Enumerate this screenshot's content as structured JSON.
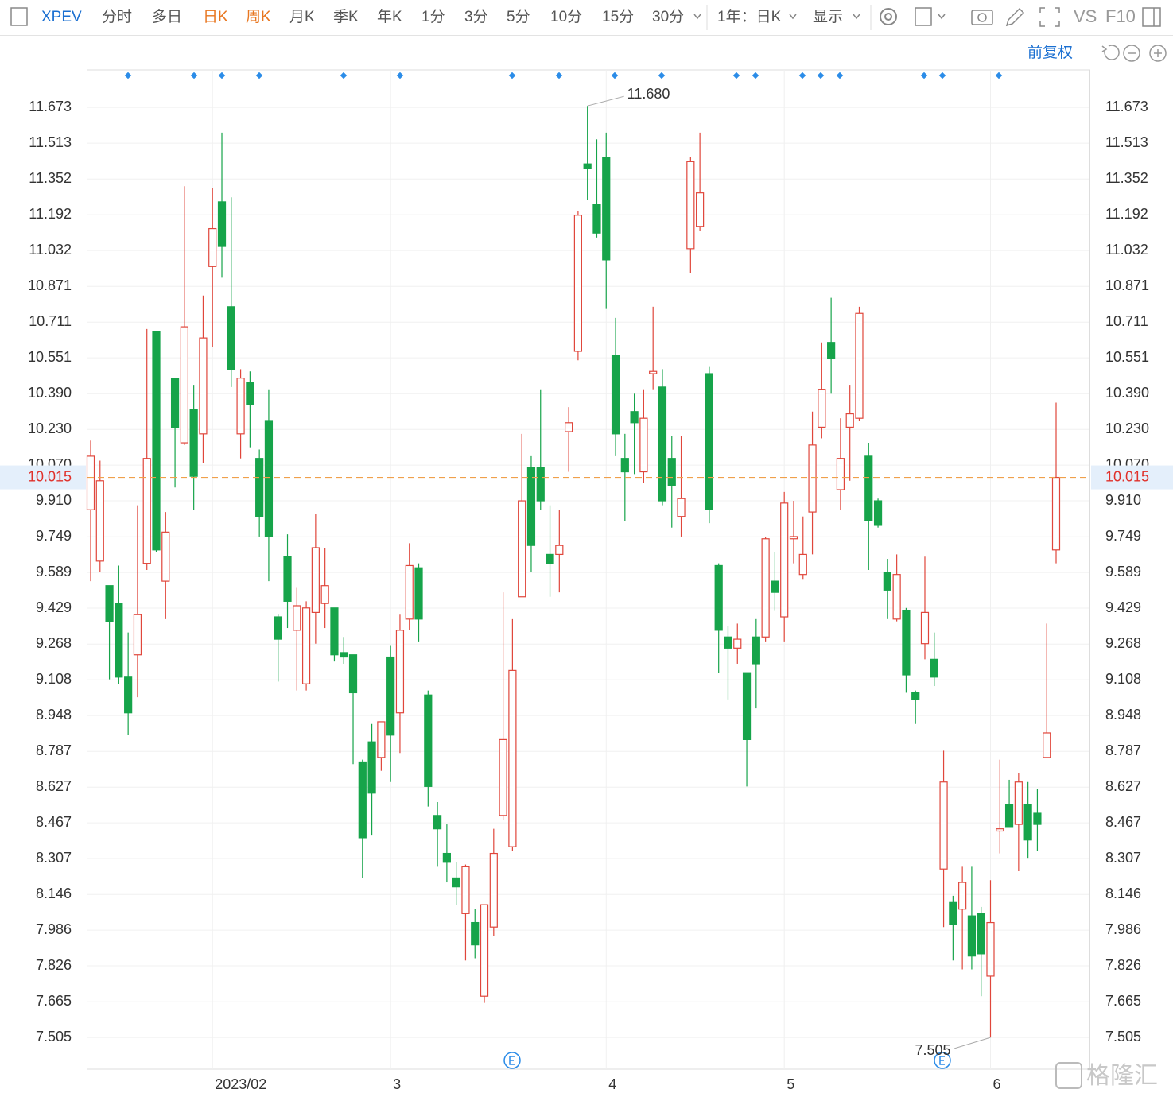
{
  "toolbar": {
    "symbol": "XPEV",
    "periods": [
      "分时",
      "多日",
      "日K",
      "周K",
      "月K",
      "季K",
      "年K",
      "1分",
      "3分",
      "5分",
      "10分",
      "15分",
      "30分"
    ],
    "range": "1年：日K",
    "display": "显示",
    "vs": "VS",
    "f10": "F10",
    "adjust": "前复权"
  },
  "watermark": "格隆汇",
  "chart_data": {
    "type": "candlestick",
    "categories": [
      null,
      null,
      null,
      null,
      null,
      null,
      null,
      null,
      null,
      null,
      null,
      null,
      null,
      "2023/02",
      null,
      null,
      null,
      null,
      null,
      null,
      null,
      null,
      null,
      null,
      null,
      null,
      null,
      null,
      null,
      null,
      null,
      null,
      "3",
      null,
      null,
      null,
      null,
      null,
      null,
      null,
      null,
      null,
      null,
      null,
      null,
      null,
      null,
      null,
      null,
      null,
      null,
      null,
      null,
      null,
      null,
      "4",
      null,
      null,
      null,
      null,
      null,
      null,
      null,
      null,
      null,
      null,
      null,
      null,
      null,
      null,
      null,
      null,
      null,
      null,
      "5",
      null,
      null,
      null,
      null,
      null,
      null,
      null,
      null,
      null,
      null,
      null,
      null,
      null,
      null,
      null,
      null,
      null,
      null,
      null,
      null,
      null,
      "6",
      null,
      null,
      null,
      null,
      null,
      null,
      null
    ],
    "open": [
      9.87,
      9.64,
      9.53,
      9.45,
      9.12,
      9.22,
      9.63,
      10.67,
      9.55,
      10.46,
      10.17,
      10.32,
      10.21,
      10.96,
      11.25,
      10.78,
      10.21,
      10.44,
      10.1,
      10.27,
      9.39,
      9.66,
      9.33,
      9.09,
      9.41,
      9.45,
      9.43,
      9.23,
      9.22,
      8.74,
      8.83,
      8.76,
      9.21,
      8.96,
      9.38,
      9.61,
      9.04,
      8.5,
      8.33,
      8.22,
      8.06,
      8.02,
      7.69,
      8.0,
      8.5,
      8.36,
      9.48,
      10.06,
      10.06,
      9.67,
      9.67,
      10.22,
      10.58,
      11.42,
      11.24,
      11.45,
      10.56,
      10.1,
      10.31,
      10.04,
      10.48,
      10.42,
      10.1,
      9.84,
      11.04,
      11.14,
      10.48,
      9.62,
      9.3,
      9.25,
      9.14,
      9.3,
      9.3,
      9.55,
      9.39,
      9.74,
      9.58,
      9.86,
      10.24,
      10.62,
      9.96,
      10.24,
      10.28,
      10.11,
      9.91,
      9.59,
      9.38,
      9.42,
      9.05,
      9.27,
      9.2,
      8.26,
      8.11,
      8.08,
      8.05,
      8.06,
      7.78,
      8.43,
      8.55,
      8.46,
      8.55,
      8.51,
      8.76,
      9.69
    ],
    "high": [
      10.18,
      10.09,
      9.53,
      9.62,
      9.32,
      9.89,
      10.68,
      10.67,
      9.86,
      10.46,
      11.32,
      10.43,
      10.83,
      11.31,
      11.56,
      11.27,
      10.5,
      10.49,
      10.14,
      10.41,
      9.4,
      9.76,
      9.52,
      9.46,
      9.85,
      9.7,
      9.43,
      9.3,
      9.22,
      8.75,
      8.91,
      8.92,
      9.26,
      9.4,
      9.72,
      9.63,
      9.06,
      8.56,
      8.46,
      8.29,
      8.28,
      8.08,
      8.1,
      8.44,
      9.5,
      9.38,
      10.21,
      10.11,
      10.41,
      9.89,
      9.87,
      10.33,
      11.21,
      11.68,
      11.53,
      11.56,
      10.73,
      10.21,
      10.39,
      10.41,
      10.78,
      10.5,
      10.2,
      10.2,
      11.45,
      11.56,
      10.51,
      9.63,
      9.35,
      9.36,
      9.14,
      9.38,
      9.75,
      9.68,
      9.95,
      9.91,
      9.84,
      10.31,
      10.62,
      10.82,
      10.28,
      10.43,
      10.78,
      10.17,
      9.92,
      9.65,
      9.67,
      9.43,
      9.06,
      9.66,
      9.32,
      8.79,
      8.14,
      8.27,
      8.27,
      8.09,
      8.21,
      8.75,
      8.66,
      8.69,
      8.65,
      8.62,
      9.36,
      10.35
    ],
    "low": [
      9.55,
      9.59,
      9.11,
      9.09,
      8.86,
      9.03,
      9.6,
      9.68,
      9.38,
      9.97,
      10.16,
      9.87,
      10.08,
      10.6,
      10.91,
      10.42,
      10.1,
      10.15,
      9.75,
      9.55,
      9.1,
      9.34,
      9.06,
      9.06,
      9.27,
      9.34,
      9.19,
      9.18,
      8.73,
      8.22,
      8.41,
      8.7,
      8.65,
      8.78,
      9.33,
      9.28,
      8.54,
      8.27,
      8.2,
      8.1,
      7.85,
      7.86,
      7.66,
      7.96,
      8.48,
      8.34,
      9.48,
      9.59,
      9.87,
      9.48,
      9.5,
      10.04,
      10.54,
      11.26,
      11.09,
      10.77,
      10.11,
      9.82,
      10.03,
      9.99,
      10.41,
      9.89,
      9.79,
      9.75,
      10.93,
      11.12,
      9.81,
      9.14,
      9.02,
      9.18,
      8.63,
      8.98,
      9.28,
      9.42,
      9.28,
      9.63,
      9.56,
      9.67,
      10.19,
      10.39,
      9.87,
      10.0,
      10.27,
      9.6,
      9.79,
      9.38,
      9.37,
      9.05,
      8.91,
      9.2,
      9.08,
      8.0,
      7.85,
      7.81,
      7.81,
      7.69,
      7.505,
      8.33,
      8.45,
      8.25,
      8.31,
      8.34,
      8.76,
      9.63
    ],
    "close": [
      10.11,
      10.0,
      9.37,
      9.12,
      8.96,
      9.4,
      10.1,
      9.69,
      9.77,
      10.24,
      10.69,
      10.02,
      10.64,
      11.13,
      11.05,
      10.5,
      10.46,
      10.34,
      9.84,
      9.75,
      9.29,
      9.46,
      9.44,
      9.43,
      9.7,
      9.53,
      9.22,
      9.21,
      9.05,
      8.4,
      8.6,
      8.92,
      8.86,
      9.33,
      9.62,
      9.38,
      8.63,
      8.44,
      8.29,
      8.18,
      8.27,
      7.92,
      8.1,
      8.33,
      8.84,
      9.15,
      9.91,
      9.71,
      9.91,
      9.63,
      9.71,
      10.26,
      11.19,
      11.4,
      11.11,
      10.99,
      10.21,
      10.04,
      10.26,
      10.28,
      10.49,
      9.91,
      9.98,
      9.92,
      11.43,
      11.29,
      9.87,
      9.33,
      9.25,
      9.29,
      8.84,
      9.18,
      9.74,
      9.5,
      9.9,
      9.75,
      9.67,
      10.16,
      10.41,
      10.55,
      10.1,
      10.3,
      10.75,
      9.82,
      9.8,
      9.51,
      9.58,
      9.13,
      9.02,
      9.41,
      9.12,
      8.65,
      8.01,
      8.2,
      7.87,
      7.88,
      8.02,
      8.44,
      8.45,
      8.65,
      8.39,
      8.46,
      8.87,
      10.015
    ],
    "up_color": "#e0463b",
    "down_color": "#16a44a",
    "price_line": 10.015,
    "annotations": [
      {
        "value": 11.68,
        "label": "11.680"
      },
      {
        "value": 7.505,
        "label": "7.505"
      }
    ],
    "ylim": [
      7.363,
      11.841
    ],
    "yticks": [
      11.673,
      11.513,
      11.352,
      11.192,
      11.032,
      10.871,
      10.711,
      10.551,
      {
        "value": 10.39,
        "label": "10.390"
      },
      {
        "value": 10.23,
        "label": "10.230"
      },
      {
        "value": 10.07,
        "label": "10.070"
      },
      {
        "value": 9.91,
        "label": "9.910"
      },
      9.749,
      9.589,
      9.429,
      9.268,
      9.108,
      8.948,
      8.787,
      8.627,
      8.467,
      8.307,
      8.146,
      7.986,
      7.826,
      7.665,
      7.505
    ],
    "grid": true
  }
}
